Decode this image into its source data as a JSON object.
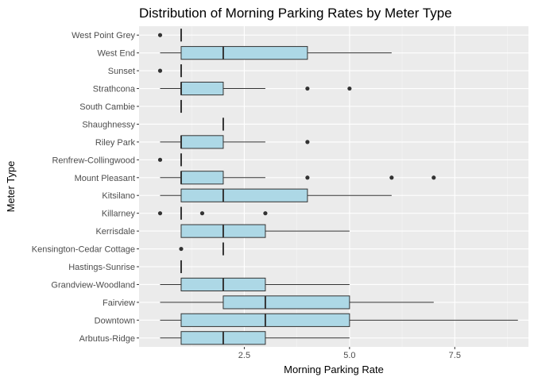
{
  "chart_data": {
    "type": "boxplot",
    "orientation": "horizontal",
    "title": "Distribution of Morning Parking Rates by Meter Type",
    "xlabel": "Morning Parking Rate",
    "ylabel": "Meter Type",
    "xlim": [
      0,
      9.25
    ],
    "x_ticks": [
      2.5,
      5.0,
      7.5
    ],
    "x_tick_labels": [
      "2.5",
      "5.0",
      "7.5"
    ],
    "grid": true,
    "legend": "none",
    "colors": {
      "panel": "#ebebeb",
      "grid_major": "#ffffff",
      "box_fill": "#add8e6",
      "box_line": "#333333",
      "point": "#333333"
    },
    "categories": [
      "West Point Grey",
      "West End",
      "Sunset",
      "Strathcona",
      "South Cambie",
      "Shaughnessy",
      "Riley Park",
      "Renfrew-Collingwood",
      "Mount Pleasant",
      "Kitsilano",
      "Killarney",
      "Kerrisdale",
      "Kensington-Cedar Cottage",
      "Hastings-Sunrise",
      "Grandview-Woodland",
      "Fairview",
      "Downtown",
      "Arbutus-Ridge"
    ],
    "boxes": [
      {
        "category": "West Point Grey",
        "min": 1,
        "q1": 1,
        "median": 1,
        "q3": 1,
        "max": 1,
        "outliers": [
          0.5
        ]
      },
      {
        "category": "West End",
        "min": 0.5,
        "q1": 1,
        "median": 2,
        "q3": 4,
        "max": 6,
        "outliers": []
      },
      {
        "category": "Sunset",
        "min": 1,
        "q1": 1,
        "median": 1,
        "q3": 1,
        "max": 1,
        "outliers": [
          0.5
        ]
      },
      {
        "category": "Strathcona",
        "min": 0.5,
        "q1": 1,
        "median": 1,
        "q3": 2,
        "max": 3,
        "outliers": [
          4,
          5
        ]
      },
      {
        "category": "South Cambie",
        "min": 1,
        "q1": 1,
        "median": 1,
        "q3": 1,
        "max": 1,
        "outliers": []
      },
      {
        "category": "Shaughnessy",
        "min": 2,
        "q1": 2,
        "median": 2,
        "q3": 2,
        "max": 2,
        "outliers": []
      },
      {
        "category": "Riley Park",
        "min": 0.5,
        "q1": 1,
        "median": 1,
        "q3": 2,
        "max": 3,
        "outliers": [
          4
        ]
      },
      {
        "category": "Renfrew-Collingwood",
        "min": 1,
        "q1": 1,
        "median": 1,
        "q3": 1,
        "max": 1,
        "outliers": [
          0.5
        ]
      },
      {
        "category": "Mount Pleasant",
        "min": 0.5,
        "q1": 1,
        "median": 1,
        "q3": 2,
        "max": 3,
        "outliers": [
          4,
          6,
          7
        ]
      },
      {
        "category": "Kitsilano",
        "min": 0.5,
        "q1": 1,
        "median": 2,
        "q3": 4,
        "max": 6,
        "outliers": []
      },
      {
        "category": "Killarney",
        "min": 1,
        "q1": 1,
        "median": 1,
        "q3": 1,
        "max": 1,
        "outliers": [
          0.5,
          1.5,
          3
        ]
      },
      {
        "category": "Kerrisdale",
        "min": 1,
        "q1": 1,
        "median": 2,
        "q3": 3,
        "max": 5,
        "outliers": []
      },
      {
        "category": "Kensington-Cedar Cottage",
        "min": 2,
        "q1": 2,
        "median": 2,
        "q3": 2,
        "max": 2,
        "outliers": [
          1
        ]
      },
      {
        "category": "Hastings-Sunrise",
        "min": 1,
        "q1": 1,
        "median": 1,
        "q3": 1,
        "max": 1,
        "outliers": []
      },
      {
        "category": "Grandview-Woodland",
        "min": 0.5,
        "q1": 1,
        "median": 2,
        "q3": 3,
        "max": 5,
        "outliers": []
      },
      {
        "category": "Fairview",
        "min": 0.5,
        "q1": 2,
        "median": 3,
        "q3": 5,
        "max": 7,
        "outliers": []
      },
      {
        "category": "Downtown",
        "min": 0.5,
        "q1": 1,
        "median": 3,
        "q3": 5,
        "max": 9,
        "outliers": []
      },
      {
        "category": "Arbutus-Ridge",
        "min": 0.5,
        "q1": 1,
        "median": 2,
        "q3": 3,
        "max": 5,
        "outliers": []
      }
    ]
  }
}
